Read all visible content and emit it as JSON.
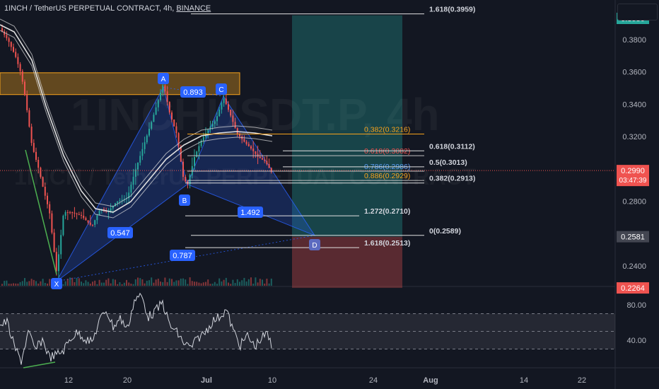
{
  "header": {
    "symbol": "1INCH / TetherUS PERPETUAL CONTRACT",
    "interval": "4h",
    "exchange": "BINANCE"
  },
  "watermark": {
    "main": "1INCHUSDT.P, 4h",
    "sub": "1INCH / TetherUS PERPETUAL CONTRACT"
  },
  "colors": {
    "background": "#131722",
    "up": "#26a69a",
    "down": "#ef5350",
    "pattern_fill": "#2962ff",
    "supply_zone": "#f7a21b",
    "ema_band": "#e0e0e0",
    "fib_gold": "#f7a21b",
    "fib_red": "#ef5350",
    "fib_blue": "#5b9cf6",
    "rsi_line": "#d1d4dc",
    "divergence": "#4caf50"
  },
  "chart_data": [
    {
      "type": "line",
      "name": "price",
      "series_type": "candlestick",
      "y_axis_ticks": [
        "0.3800",
        "0.3600",
        "0.3400",
        "0.3200",
        "0.2800",
        "0.2400"
      ],
      "ylim": [
        0.2215,
        0.403
      ],
      "x_axis_ticks": [
        "12",
        "20",
        "Jul",
        "10",
        "24",
        "Aug",
        "14",
        "22"
      ],
      "current_price": {
        "value": "0.2990",
        "countdown": "03:47:39"
      },
      "price_tags": [
        {
          "value": "0.3950",
          "color": "#26a69a"
        },
        {
          "value": "0.2581",
          "color": "#434651"
        },
        {
          "value": "0.2264",
          "color": "#ef5350"
        }
      ],
      "harmonic_points": [
        {
          "label": "X",
          "price": 0.2305
        },
        {
          "label": "A",
          "price": 0.3505
        },
        {
          "label": "B",
          "price": 0.2905
        },
        {
          "label": "C",
          "price": 0.345
        },
        {
          "label": "D",
          "price": 0.2589
        }
      ],
      "ratios": [
        "0.893",
        "0.547",
        "1.492",
        "0.787"
      ],
      "fib_levels": [
        {
          "text": "1.618(0.3959)",
          "price": 0.3959
        },
        {
          "text": "0.382(0.3216)",
          "price": 0.3216
        },
        {
          "text": "0.618(0.3082)",
          "price": 0.3082
        },
        {
          "text": "0.786(0.2986)",
          "price": 0.2986
        },
        {
          "text": "0.886(0.2929)",
          "price": 0.2929
        },
        {
          "text": "0.618(0.3112)",
          "price": 0.3112
        },
        {
          "text": "0.5(0.3013)",
          "price": 0.3013
        },
        {
          "text": "0.382(0.2913)",
          "price": 0.2913
        },
        {
          "text": "1.272(0.2710)",
          "price": 0.271
        },
        {
          "text": "0(0.2589)",
          "price": 0.2589
        },
        {
          "text": "1.618(0.2513)",
          "price": 0.2513
        }
      ],
      "supply_zone": [
        0.346,
        0.3595
      ],
      "trade": {
        "target": 0.395,
        "entry": 0.2581,
        "stop": 0.2264
      }
    },
    {
      "type": "line",
      "name": "rsi",
      "y_axis_ticks": [
        "80.00",
        "40.00"
      ],
      "ylim": [
        26,
        97
      ],
      "band": [
        30,
        70
      ]
    }
  ]
}
